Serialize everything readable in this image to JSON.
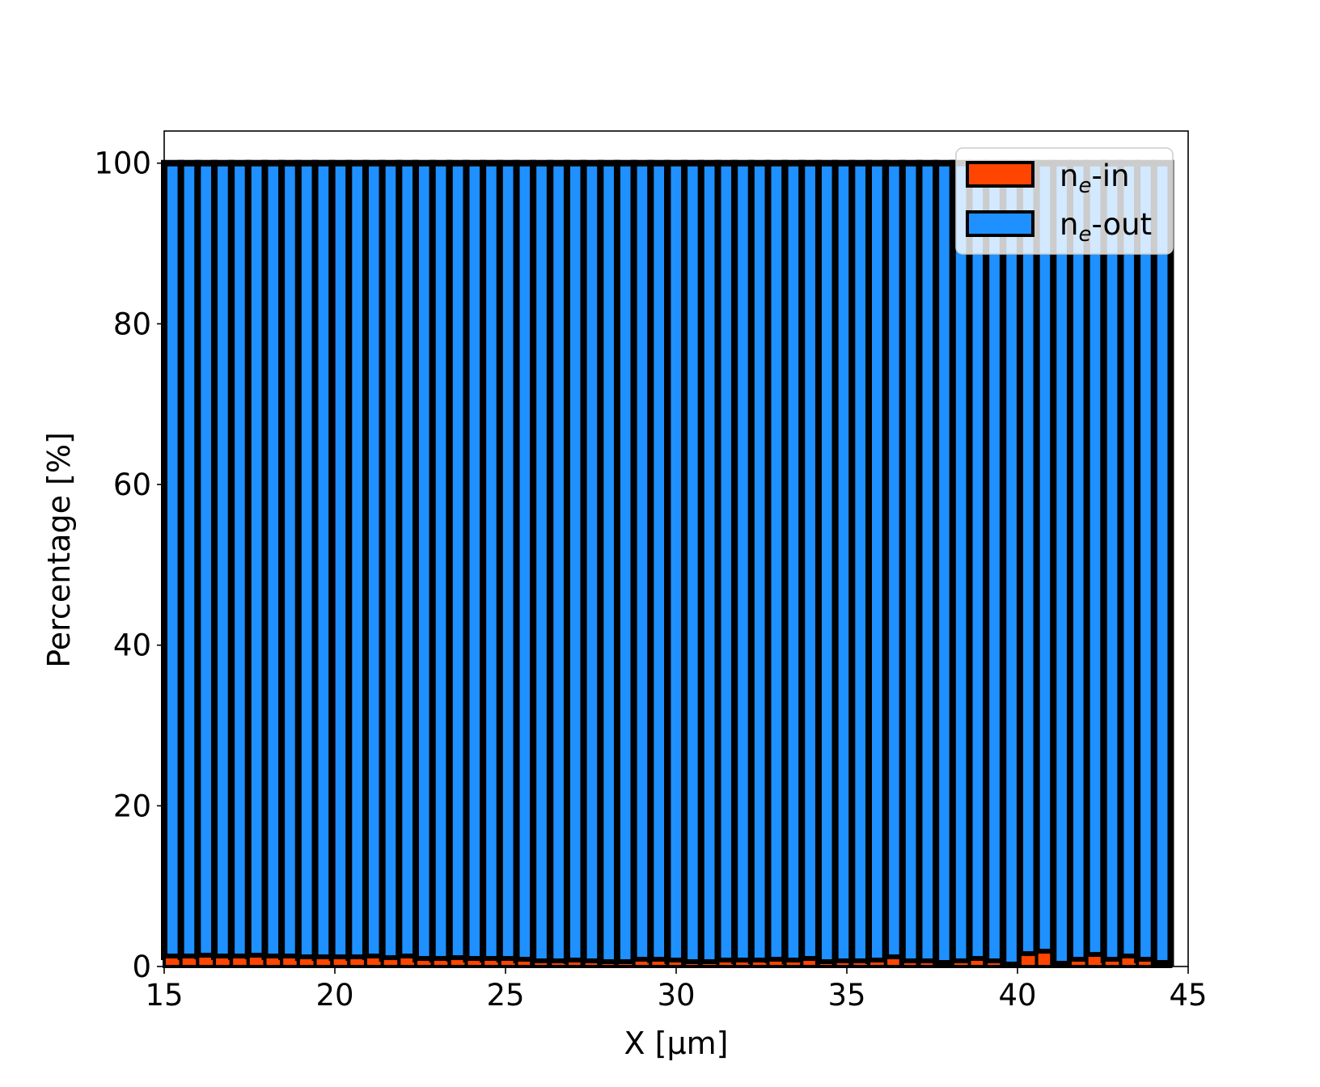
{
  "chart_data": {
    "type": "bar",
    "stacked": true,
    "xlabel": "X  [μm]",
    "ylabel": "Percentage  [%]",
    "xlim": [
      15,
      45
    ],
    "ylim": [
      0,
      104
    ],
    "xticks": [
      "15",
      "20",
      "25",
      "30",
      "35",
      "40",
      "45"
    ],
    "yticks": [
      "0",
      "20",
      "40",
      "60",
      "80",
      "100"
    ],
    "grid": false,
    "legend_position": "top-right",
    "bar_width": 0.49,
    "x": [
      15.0,
      15.49,
      15.98,
      16.47,
      16.97,
      17.46,
      17.95,
      18.44,
      18.93,
      19.42,
      19.92,
      20.41,
      20.9,
      21.39,
      21.88,
      22.37,
      22.86,
      23.36,
      23.85,
      24.34,
      24.83,
      25.32,
      25.81,
      26.31,
      26.8,
      27.29,
      27.78,
      28.27,
      28.76,
      29.25,
      29.75,
      30.24,
      30.73,
      31.22,
      31.71,
      32.2,
      32.69,
      33.19,
      33.68,
      34.17,
      34.66,
      35.15,
      35.64,
      36.14,
      36.63,
      37.12,
      37.61,
      38.1,
      38.59,
      39.08,
      39.58,
      40.07,
      40.56,
      41.05,
      41.54,
      42.03,
      42.53,
      43.02,
      43.51,
      44.0
    ],
    "series": [
      {
        "name": "ne-in",
        "color": "#ff4500",
        "values": [
          1.2,
          1.2,
          1.3,
          1.2,
          1.2,
          1.3,
          1.2,
          1.2,
          1.1,
          1.1,
          1.1,
          1.1,
          1.2,
          1.0,
          1.2,
          0.9,
          0.9,
          1.0,
          0.9,
          0.9,
          0.9,
          0.8,
          0.6,
          0.6,
          0.7,
          0.6,
          0.5,
          0.5,
          0.8,
          0.8,
          0.7,
          0.5,
          0.5,
          0.7,
          0.7,
          0.7,
          0.8,
          0.7,
          0.9,
          0.5,
          0.6,
          0.6,
          0.7,
          1.1,
          0.6,
          0.6,
          0.4,
          0.6,
          0.9,
          0.6,
          0.2,
          1.5,
          1.8,
          0.3,
          0.8,
          1.4,
          0.8,
          1.2,
          0.8,
          0.4
        ]
      },
      {
        "name": "ne-out",
        "color": "#1e90ff",
        "complement_to": 100
      }
    ],
    "legend": [
      {
        "base": "n",
        "sub": "e",
        "suffix": "-in"
      },
      {
        "base": "n",
        "sub": "e",
        "suffix": "-out"
      }
    ]
  }
}
